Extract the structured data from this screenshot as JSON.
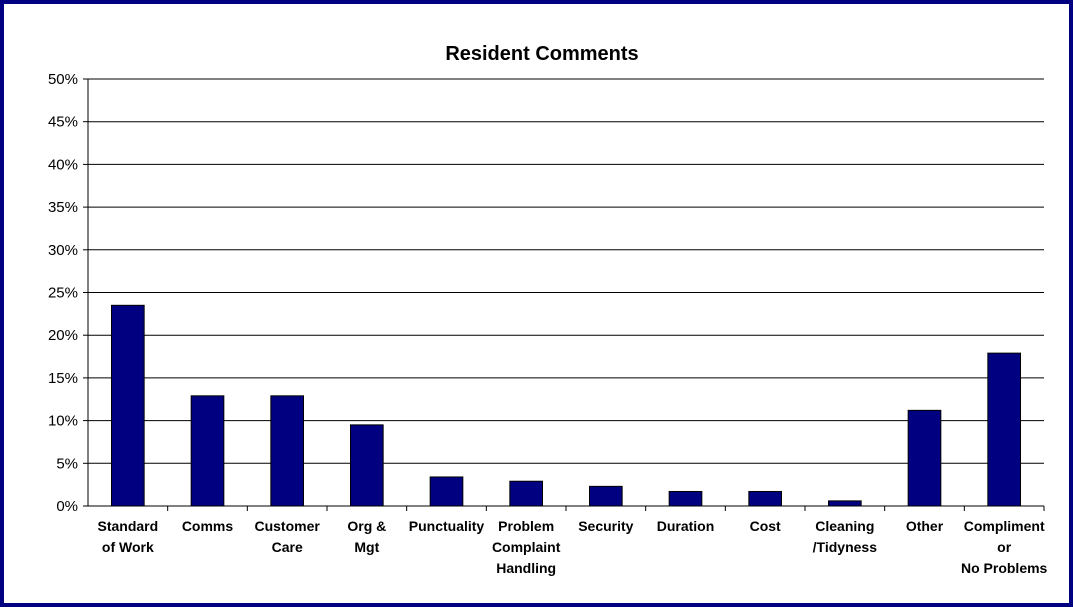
{
  "chart_data": {
    "type": "bar",
    "title": "Resident Comments",
    "xlabel": "",
    "ylabel": "",
    "ylim": [
      0,
      50
    ],
    "ytick_step": 5,
    "y_ticks": [
      "0%",
      "5%",
      "10%",
      "15%",
      "20%",
      "25%",
      "30%",
      "35%",
      "40%",
      "45%",
      "50%"
    ],
    "grid": true,
    "legend": "none",
    "colors": {
      "bar": "#000080",
      "frame": "#000080",
      "grid": "#000000"
    },
    "categories": [
      [
        "Standard",
        "of Work"
      ],
      [
        "Comms"
      ],
      [
        "Customer",
        "Care"
      ],
      [
        "Org &",
        "Mgt"
      ],
      [
        "Punctuality"
      ],
      [
        "Problem",
        "Complaint",
        "Handling"
      ],
      [
        "Security"
      ],
      [
        "Duration"
      ],
      [
        "Cost"
      ],
      [
        "Cleaning",
        "/Tidyness"
      ],
      [
        "Other"
      ],
      [
        "Compliment",
        "or",
        "No Problems"
      ]
    ],
    "values": [
      23.5,
      12.9,
      12.9,
      9.5,
      3.4,
      2.9,
      2.3,
      1.7,
      1.7,
      0.6,
      11.2,
      17.9
    ]
  }
}
